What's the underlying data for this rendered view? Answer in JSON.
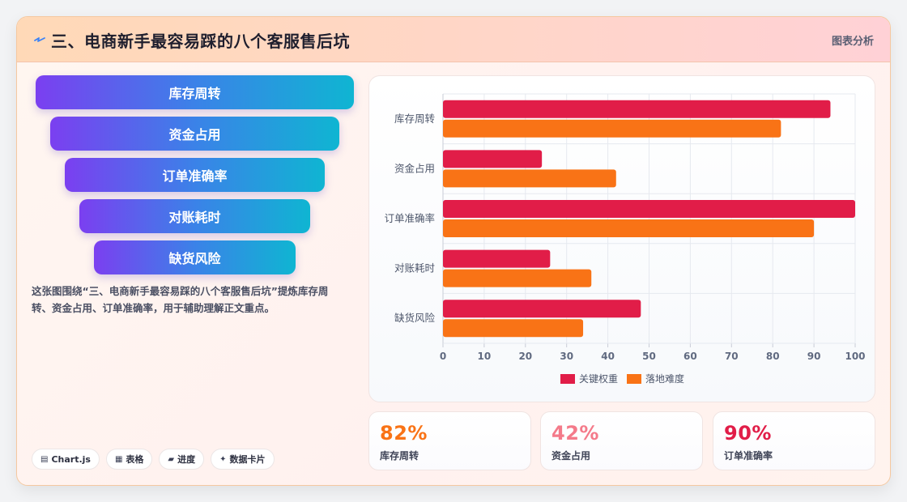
{
  "header": {
    "icon": "spark-icon",
    "title": "三、电商新手最容易踩的八个客服售后坑",
    "right_label": "图表分析"
  },
  "funnel": {
    "items": [
      "库存周转",
      "资金占用",
      "订单准确率",
      "对账耗时",
      "缺货风险"
    ]
  },
  "description": "这张图围绕“三、电商新手最容易踩的八个客服售后坑”提炼库存周转、资金占用、订单准确率，用于辅助理解正文重点。",
  "tags": [
    {
      "icon": "chart-icon",
      "glyph": "▤",
      "label": "Chart.js"
    },
    {
      "icon": "table-icon",
      "glyph": "▦",
      "label": "表格"
    },
    {
      "icon": "progress-icon",
      "glyph": "▰",
      "label": "进度"
    },
    {
      "icon": "sparkle-icon",
      "glyph": "✦",
      "label": "数据卡片"
    }
  ],
  "chart_data": {
    "type": "bar",
    "orientation": "horizontal",
    "categories": [
      "库存周转",
      "资金占用",
      "订单准确率",
      "对账耗时",
      "缺货风险"
    ],
    "series": [
      {
        "name": "关键权重",
        "color": "#e11d48",
        "values": [
          94,
          24,
          100,
          26,
          48
        ]
      },
      {
        "name": "落地难度",
        "color": "#f97316",
        "values": [
          82,
          42,
          90,
          36,
          34
        ]
      }
    ],
    "xlim": [
      0,
      100
    ],
    "xticks": [
      0,
      10,
      20,
      30,
      40,
      50,
      60,
      70,
      80,
      90,
      100
    ],
    "grid": true,
    "legend": "bottom"
  },
  "stats": [
    {
      "value": "82%",
      "label": "库存周转",
      "color": "#f97316"
    },
    {
      "value": "42%",
      "label": "资金占用",
      "color": "#f47a8a"
    },
    {
      "value": "90%",
      "label": "订单准确率",
      "color": "#e11d48"
    }
  ]
}
